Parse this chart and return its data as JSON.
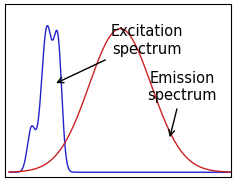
{
  "background_color": "#ffffff",
  "excitation_color": "#2222cc",
  "emission_color": "#cc2222",
  "annotation_excitation_text": "Excitation\nspectrum",
  "annotation_emission_text": "Emission\nspectrum",
  "annotation_fontsize": 10.5,
  "figsize": [
    2.36,
    1.84
  ],
  "dpi": 100
}
